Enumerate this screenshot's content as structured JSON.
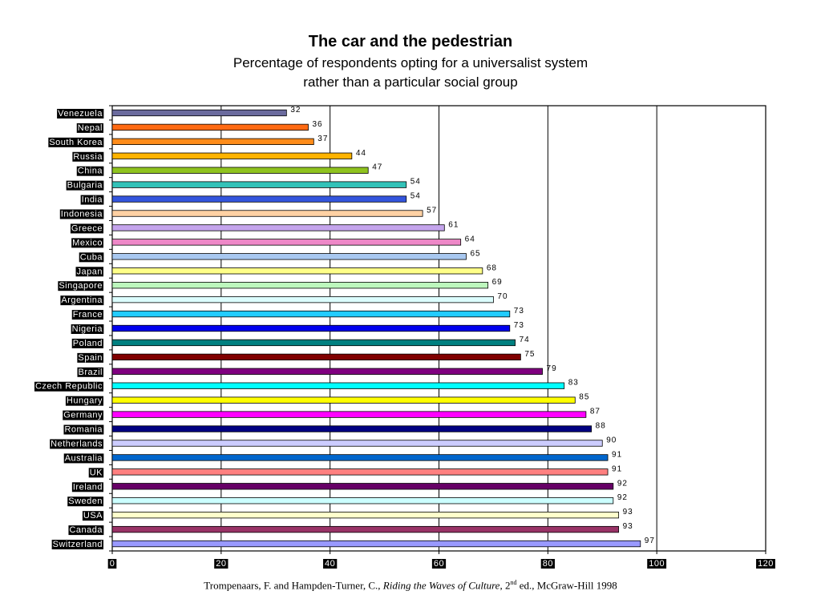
{
  "title": "The car and the pedestrian",
  "subtitle_line1": "Percentage of respondents opting for a universalist system",
  "subtitle_line2": "rather than a particular social group",
  "source": {
    "authors": "Trompenaars, F. and  Hampden-Turner, C., ",
    "book": "Riding the Waves of Culture",
    "edition_prefix": ", 2",
    "edition_sup": "nd",
    "edition_suffix": " ed., McGraw-Hill 1998"
  },
  "chart_data": {
    "type": "bar",
    "orientation": "horizontal",
    "categories": [
      "Venezuela",
      "Nepal",
      "South Korea",
      "Russia",
      "China",
      "Bulgaria",
      "India",
      "Indonesia",
      "Greece",
      "Mexico",
      "Cuba",
      "Japan",
      "Singapore",
      "Argentina",
      "France",
      "Nigeria",
      "Poland",
      "Spain",
      "Brazil",
      "Czech Republic",
      "Hungary",
      "Germany",
      "Romania",
      "Netherlands",
      "Australia",
      "UK",
      "Ireland",
      "Sweden",
      "USA",
      "Canada",
      "Switzerland"
    ],
    "values": [
      32,
      36,
      37,
      44,
      47,
      54,
      54,
      57,
      61,
      64,
      65,
      68,
      69,
      70,
      73,
      73,
      74,
      75,
      79,
      83,
      85,
      87,
      88,
      90,
      91,
      91,
      92,
      92,
      93,
      93,
      97
    ],
    "colors": [
      "#6b6b9e",
      "#ff6a13",
      "#ff8c1a",
      "#ffb300",
      "#8fc31f",
      "#33c2b8",
      "#3355dd",
      "#ffd1a4",
      "#c4a4ec",
      "#ee88c8",
      "#a8c8f0",
      "#ffff88",
      "#bdf7bd",
      "#dcfdfd",
      "#22ccff",
      "#0000ee",
      "#008080",
      "#800000",
      "#800080",
      "#00ffff",
      "#ffff00",
      "#ff00ff",
      "#000080",
      "#ccccff",
      "#0066cc",
      "#ff8080",
      "#660066",
      "#ccffff",
      "#ffffcc",
      "#993366",
      "#9999ff"
    ],
    "xlim": [
      0,
      120
    ],
    "xticks": [
      0,
      20,
      40,
      60,
      80,
      100,
      120
    ],
    "grid": true,
    "legend": "none"
  }
}
